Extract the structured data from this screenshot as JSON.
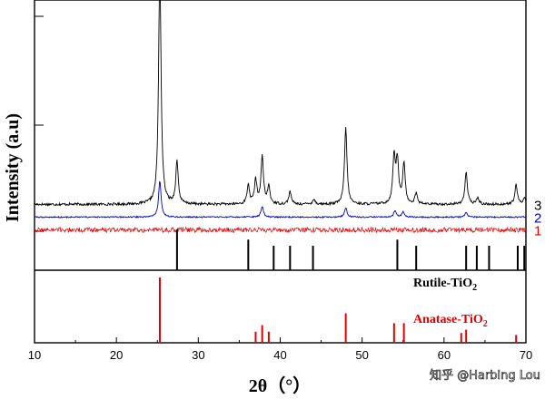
{
  "chart_data": {
    "type": "line",
    "xlabel": "2θ（°）",
    "ylabel": "Intensity (a.u)",
    "xlim": [
      10,
      70
    ],
    "x_ticks": [
      10,
      20,
      30,
      40,
      50,
      60,
      70
    ],
    "x_tick_labels": [
      "10",
      "20",
      "30",
      "40",
      "50",
      "60",
      "70"
    ],
    "grid": false,
    "series": [
      {
        "name": "3",
        "color": "#000000",
        "baseline": 0.78,
        "noise": 0.03,
        "peaks": [
          {
            "x": 25.3,
            "h": 5.5
          },
          {
            "x": 27.4,
            "h": 1.0
          },
          {
            "x": 36.1,
            "h": 0.45
          },
          {
            "x": 37.0,
            "h": 0.55
          },
          {
            "x": 37.8,
            "h": 1.1
          },
          {
            "x": 38.6,
            "h": 0.4
          },
          {
            "x": 41.2,
            "h": 0.3
          },
          {
            "x": 44.1,
            "h": 0.12
          },
          {
            "x": 48.0,
            "h": 1.8
          },
          {
            "x": 53.9,
            "h": 1.1
          },
          {
            "x": 54.3,
            "h": 1.0
          },
          {
            "x": 55.1,
            "h": 0.95
          },
          {
            "x": 56.6,
            "h": 0.25
          },
          {
            "x": 62.7,
            "h": 0.75
          },
          {
            "x": 64.1,
            "h": 0.15
          },
          {
            "x": 68.8,
            "h": 0.45
          },
          {
            "x": 69.8,
            "h": 0.15
          }
        ]
      },
      {
        "name": "2",
        "color": "#0000cc",
        "baseline": 0.48,
        "noise": 0.015,
        "peaks": [
          {
            "x": 25.3,
            "h": 0.85
          },
          {
            "x": 37.8,
            "h": 0.25
          },
          {
            "x": 48.0,
            "h": 0.22
          },
          {
            "x": 54.0,
            "h": 0.15
          },
          {
            "x": 55.0,
            "h": 0.12
          },
          {
            "x": 62.7,
            "h": 0.1
          }
        ]
      },
      {
        "name": "1",
        "color": "#e00000",
        "baseline": 0.18,
        "noise": 0.06,
        "peaks": []
      }
    ],
    "reference_patterns": [
      {
        "name": "Rutile-TiO",
        "subscript": "2",
        "color": "#000000",
        "lines": [
          {
            "x": 27.4,
            "h": 1.0
          },
          {
            "x": 36.1,
            "h": 0.75
          },
          {
            "x": 39.2,
            "h": 0.6
          },
          {
            "x": 41.2,
            "h": 0.6
          },
          {
            "x": 44.0,
            "h": 0.6
          },
          {
            "x": 54.3,
            "h": 0.75
          },
          {
            "x": 56.6,
            "h": 0.6
          },
          {
            "x": 62.7,
            "h": 0.6
          },
          {
            "x": 64.0,
            "h": 0.6
          },
          {
            "x": 65.5,
            "h": 0.6
          },
          {
            "x": 69.0,
            "h": 0.6
          },
          {
            "x": 69.8,
            "h": 0.6
          }
        ]
      },
      {
        "name": "Anatase-TiO",
        "subscript": "2",
        "color": "#e00000",
        "lines": [
          {
            "x": 25.3,
            "h": 1.0
          },
          {
            "x": 37.0,
            "h": 0.17
          },
          {
            "x": 37.8,
            "h": 0.27
          },
          {
            "x": 38.6,
            "h": 0.17
          },
          {
            "x": 48.0,
            "h": 0.45
          },
          {
            "x": 53.9,
            "h": 0.3
          },
          {
            "x": 55.1,
            "h": 0.3
          },
          {
            "x": 62.1,
            "h": 0.15
          },
          {
            "x": 62.7,
            "h": 0.2
          },
          {
            "x": 68.8,
            "h": 0.12
          }
        ]
      }
    ]
  },
  "watermark": "知乎 @Harbing Lou"
}
